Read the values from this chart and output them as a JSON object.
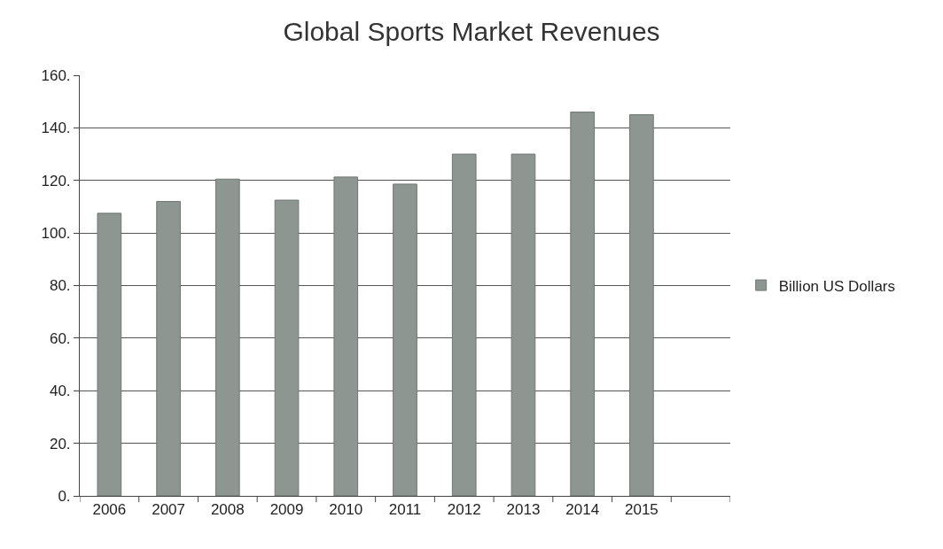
{
  "chart_data": {
    "type": "bar",
    "title": "Global Sports Market Revenues",
    "categories": [
      "2006",
      "2007",
      "2008",
      "2009",
      "2010",
      "2011",
      "2012",
      "2013",
      "2014",
      "2015",
      null
    ],
    "series": [
      {
        "name": "Billion US Dollars",
        "color": "#8e9692",
        "values": [
          107.5,
          112,
          120.5,
          112.5,
          121.3,
          118.6,
          130,
          130,
          146,
          145,
          null
        ]
      }
    ],
    "ylim": [
      0,
      160
    ],
    "yticks": [
      {
        "value": 0,
        "label": "0."
      },
      {
        "value": 20,
        "label": "20."
      },
      {
        "value": 40,
        "label": "40."
      },
      {
        "value": 60,
        "label": "60."
      },
      {
        "value": 80,
        "label": "80."
      },
      {
        "value": 100,
        "label": "100."
      },
      {
        "value": 120,
        "label": "120."
      },
      {
        "value": 140,
        "label": "140."
      },
      {
        "value": 160,
        "label": "160."
      }
    ],
    "grid": "y",
    "legend": "right"
  }
}
